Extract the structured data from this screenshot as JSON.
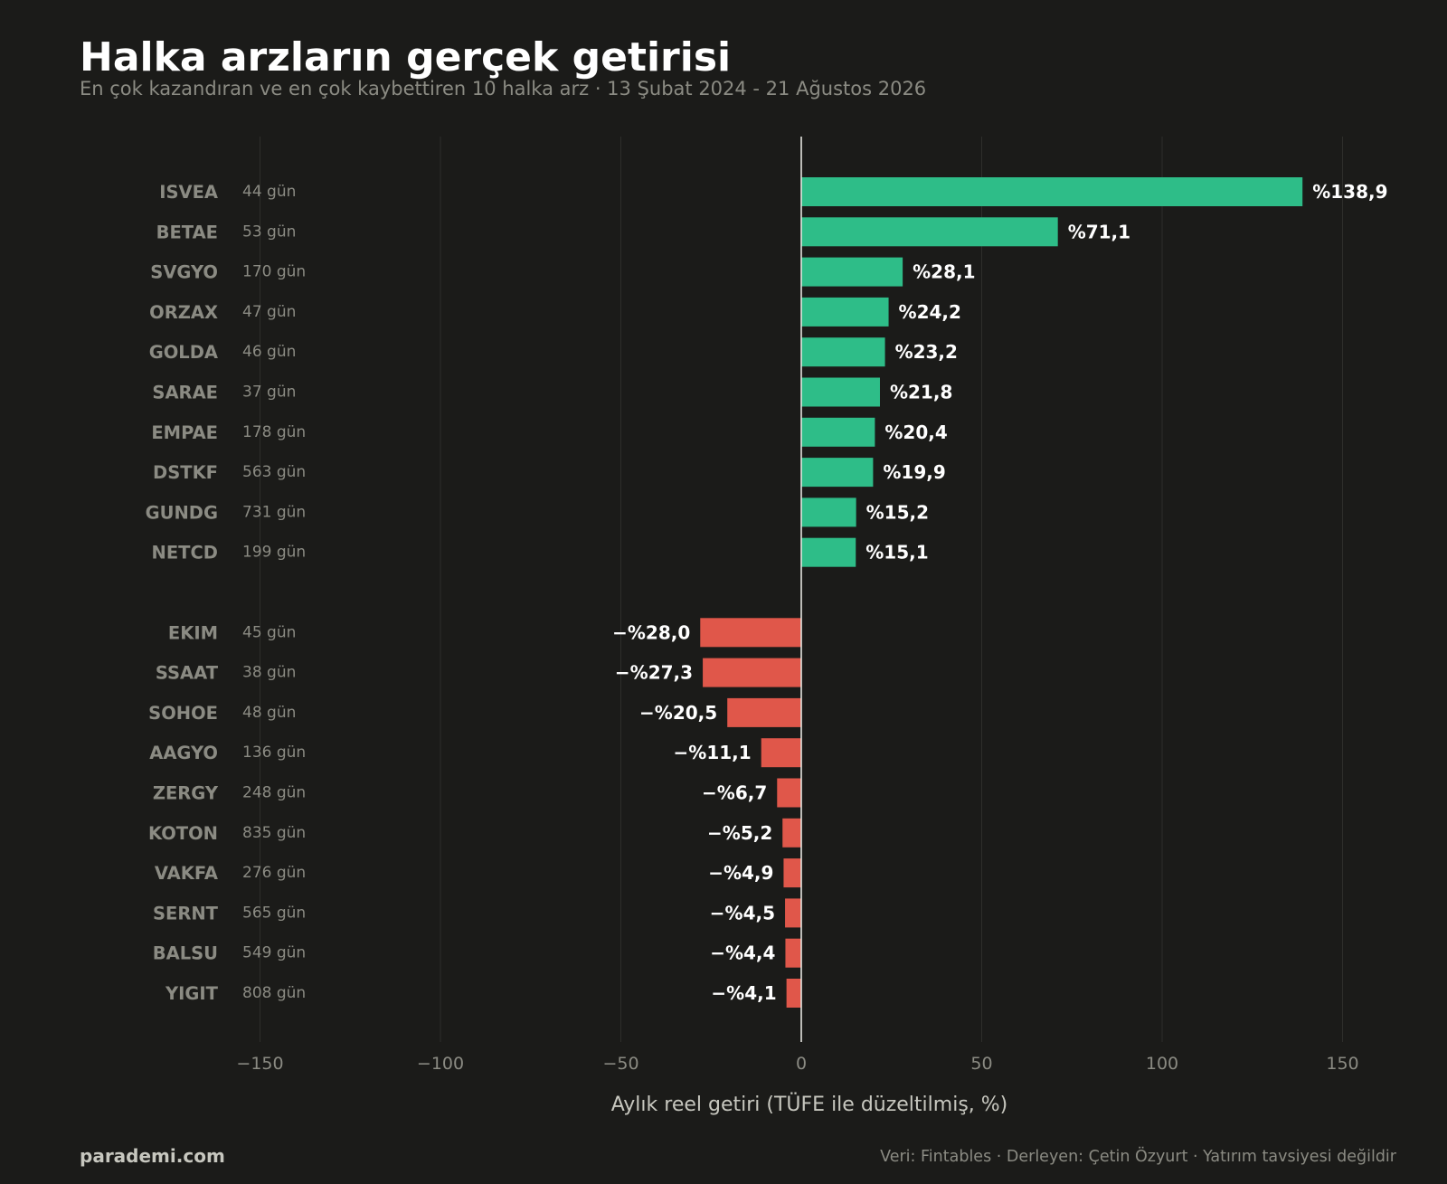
{
  "header": {
    "title": "Halka arzların gerçek getirisi",
    "subtitle": "En çok kazandıran ve en çok kaybettiren 10 halka arz · 13 Şubat 2024 - 21 Ağustos 2026"
  },
  "footer": {
    "brand": "parademi.com",
    "note": "Veri: Fintables · Derleyen: Çetin Özyurt · Yatırım tavsiyesi değildir"
  },
  "colors": {
    "background": "#1b1b19",
    "positive": "#2ebd88",
    "negative": "#e0574a",
    "ticker_text": "#8b8b83",
    "days_text": "#8b8b83",
    "value_text": "#ffffff",
    "grid": "#2e2e2b",
    "zero_line": "#e6e6e0"
  },
  "chart_data": {
    "type": "bar",
    "orientation": "horizontal",
    "xlabel": "Aylık reel getiri (TÜFE ile düzeltilmiş, %)",
    "xlim": [
      -150,
      150
    ],
    "x_ticks": [
      -150,
      -100,
      -50,
      0,
      50,
      100,
      150
    ],
    "x_tick_labels": [
      "−150",
      "−100",
      "−50",
      "0",
      "50",
      "100",
      "150"
    ],
    "grid": "vertical",
    "groups": [
      {
        "name": "gainers",
        "color": "#2ebd88",
        "items": [
          {
            "ticker": "ISVEA",
            "days": "44 gün",
            "value": 138.9,
            "label": "%138,9"
          },
          {
            "ticker": "BETAE",
            "days": "53 gün",
            "value": 71.1,
            "label": "%71,1"
          },
          {
            "ticker": "SVGYO",
            "days": "170 gün",
            "value": 28.1,
            "label": "%28,1"
          },
          {
            "ticker": "ORZAX",
            "days": "47 gün",
            "value": 24.2,
            "label": "%24,2"
          },
          {
            "ticker": "GOLDA",
            "days": "46 gün",
            "value": 23.2,
            "label": "%23,2"
          },
          {
            "ticker": "SARAE",
            "days": "37 gün",
            "value": 21.8,
            "label": "%21,8"
          },
          {
            "ticker": "EMPAE",
            "days": "178 gün",
            "value": 20.4,
            "label": "%20,4"
          },
          {
            "ticker": "DSTKF",
            "days": "563 gün",
            "value": 19.9,
            "label": "%19,9"
          },
          {
            "ticker": "GUNDG",
            "days": "731 gün",
            "value": 15.2,
            "label": "%15,2"
          },
          {
            "ticker": "NETCD",
            "days": "199 gün",
            "value": 15.1,
            "label": "%15,1"
          }
        ]
      },
      {
        "name": "losers",
        "color": "#e0574a",
        "items": [
          {
            "ticker": "EKIM",
            "days": "45 gün",
            "value": -28.0,
            "label": "−%28,0"
          },
          {
            "ticker": "SSAAT",
            "days": "38 gün",
            "value": -27.3,
            "label": "−%27,3"
          },
          {
            "ticker": "SOHOE",
            "days": "48 gün",
            "value": -20.5,
            "label": "−%20,5"
          },
          {
            "ticker": "AAGYO",
            "days": "136 gün",
            "value": -11.1,
            "label": "−%11,1"
          },
          {
            "ticker": "ZERGY",
            "days": "248 gün",
            "value": -6.7,
            "label": "−%6,7"
          },
          {
            "ticker": "KOTON",
            "days": "835 gün",
            "value": -5.2,
            "label": "−%5,2"
          },
          {
            "ticker": "VAKFA",
            "days": "276 gün",
            "value": -4.9,
            "label": "−%4,9"
          },
          {
            "ticker": "SERNT",
            "days": "565 gün",
            "value": -4.5,
            "label": "−%4,5"
          },
          {
            "ticker": "BALSU",
            "days": "549 gün",
            "value": -4.4,
            "label": "−%4,4"
          },
          {
            "ticker": "YIGIT",
            "days": "808 gün",
            "value": -4.1,
            "label": "−%4,1"
          }
        ]
      }
    ]
  }
}
